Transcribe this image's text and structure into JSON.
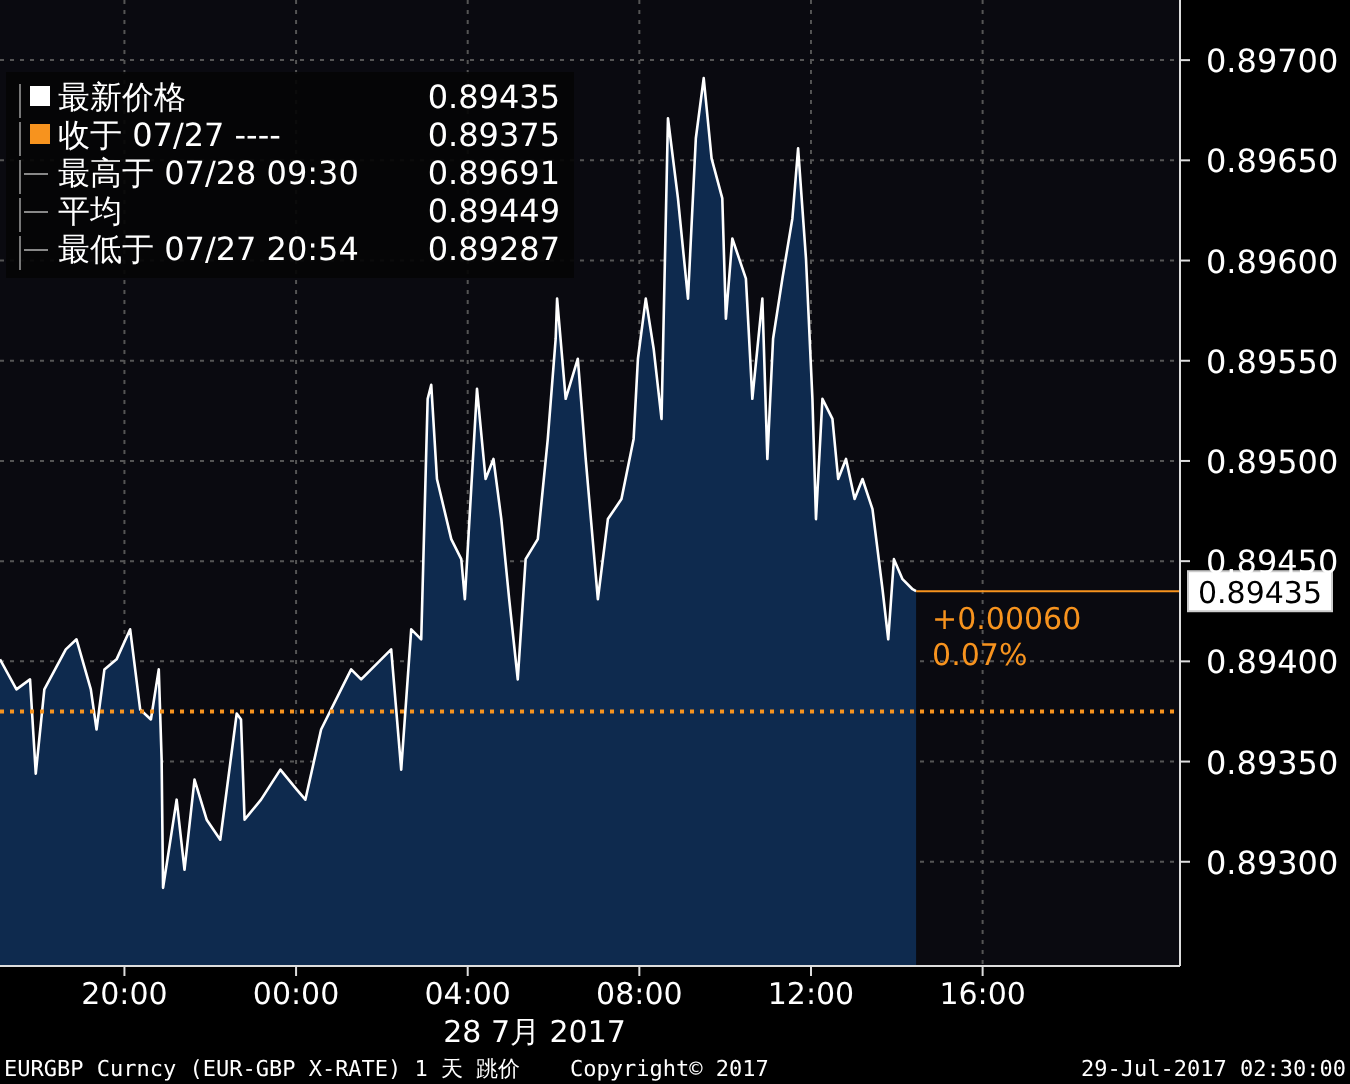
{
  "chart_data": {
    "type": "area",
    "xlabel": "28 7月 2017",
    "x": [
      "2017-07-27T17:06",
      "2017-07-27T17:29",
      "2017-07-27T17:48",
      "2017-07-27T17:56",
      "2017-07-27T18:08",
      "2017-07-27T18:38",
      "2017-07-27T18:53",
      "2017-07-27T19:13",
      "2017-07-27T19:21",
      "2017-07-27T19:32",
      "2017-07-27T19:49",
      "2017-07-27T20:08",
      "2017-07-27T20:22",
      "2017-07-27T20:37",
      "2017-07-27T20:48",
      "2017-07-27T20:52",
      "2017-07-27T20:54",
      "2017-07-27T21:13",
      "2017-07-27T21:24",
      "2017-07-27T21:38",
      "2017-07-27T21:55",
      "2017-07-27T22:14",
      "2017-07-27T22:37",
      "2017-07-27T22:43",
      "2017-07-27T22:48",
      "2017-07-27T23:11",
      "2017-07-27T23:38",
      "2017-07-28T00:01",
      "2017-07-28T00:13",
      "2017-07-28T00:35",
      "2017-07-28T01:03",
      "2017-07-28T01:17",
      "2017-07-28T01:31",
      "2017-07-28T01:59",
      "2017-07-28T02:13",
      "2017-07-28T02:27",
      "2017-07-28T02:41",
      "2017-07-28T02:55",
      "2017-07-28T03:04",
      "2017-07-28T03:09",
      "2017-07-28T03:17",
      "2017-07-28T03:37",
      "2017-07-28T03:51",
      "2017-07-28T03:56",
      "2017-07-28T04:13",
      "2017-07-28T04:25",
      "2017-07-28T04:36",
      "2017-07-28T04:47",
      "2017-07-28T04:58",
      "2017-07-28T05:10",
      "2017-07-28T05:21",
      "2017-07-28T05:38",
      "2017-07-28T05:52",
      "2017-07-28T06:03",
      "2017-07-28T06:05",
      "2017-07-28T06:17",
      "2017-07-28T06:34",
      "2017-07-28T06:45",
      "2017-07-28T07:02",
      "2017-07-28T07:16",
      "2017-07-28T07:35",
      "2017-07-28T07:52",
      "2017-07-28T07:58",
      "2017-07-28T08:09",
      "2017-07-28T08:20",
      "2017-07-28T08:31",
      "2017-07-28T08:40",
      "2017-07-28T08:54",
      "2017-07-28T09:08",
      "2017-07-28T09:19",
      "2017-07-28T09:30",
      "2017-07-28T09:41",
      "2017-07-28T09:56",
      "2017-07-28T10:01",
      "2017-07-28T10:10",
      "2017-07-28T10:29",
      "2017-07-28T10:38",
      "2017-07-28T10:52",
      "2017-07-28T10:59",
      "2017-07-28T11:07",
      "2017-07-28T11:20",
      "2017-07-28T11:34",
      "2017-07-28T11:42",
      "2017-07-28T11:53",
      "2017-07-28T12:02",
      "2017-07-28T12:07",
      "2017-07-28T12:16",
      "2017-07-28T12:30",
      "2017-07-28T12:38",
      "2017-07-28T12:49",
      "2017-07-28T13:01",
      "2017-07-28T13:12",
      "2017-07-28T13:26",
      "2017-07-28T13:40",
      "2017-07-28T13:48",
      "2017-07-28T13:56",
      "2017-07-28T14:08",
      "2017-07-28T14:22",
      "2017-07-28T14:27"
    ],
    "series": [
      {
        "color": "#ffffff",
        "values": [
          0.89401,
          0.89386,
          0.89391,
          0.89344,
          0.89386,
          0.89406,
          0.89411,
          0.89386,
          0.89366,
          0.89396,
          0.89401,
          0.89416,
          0.89376,
          0.89371,
          0.89396,
          0.89351,
          0.89287,
          0.89331,
          0.89296,
          0.89341,
          0.89321,
          0.89311,
          0.89374,
          0.89371,
          0.89321,
          0.89331,
          0.89346,
          0.89336,
          0.89331,
          0.89366,
          0.89386,
          0.89396,
          0.89391,
          0.89401,
          0.89406,
          0.89346,
          0.89416,
          0.89411,
          0.89531,
          0.89538,
          0.89491,
          0.89461,
          0.89451,
          0.89431,
          0.89536,
          0.89491,
          0.89501,
          0.89471,
          0.89431,
          0.89391,
          0.89451,
          0.89461,
          0.89511,
          0.89561,
          0.89581,
          0.89531,
          0.89551,
          0.89501,
          0.89431,
          0.89471,
          0.89481,
          0.89511,
          0.89551,
          0.89581,
          0.89556,
          0.89521,
          0.89671,
          0.89631,
          0.89581,
          0.89661,
          0.89691,
          0.89651,
          0.89631,
          0.89571,
          0.89611,
          0.89591,
          0.89531,
          0.89581,
          0.89501,
          0.89561,
          0.89591,
          0.89621,
          0.89656,
          0.89601,
          0.89531,
          0.89471,
          0.89531,
          0.89521,
          0.89491,
          0.89501,
          0.89481,
          0.89491,
          0.89476,
          0.89436,
          0.89411,
          0.89451,
          0.89441,
          0.89436,
          0.89435
        ]
      }
    ],
    "xlim": [
      "2017-07-27T17:06",
      "2017-07-28T20:36"
    ],
    "xticks": [
      {
        "value": "2017-07-27T20:00",
        "label": "20:00"
      },
      {
        "value": "2017-07-28T00:00",
        "label": "00:00"
      },
      {
        "value": "2017-07-28T04:00",
        "label": "04:00"
      },
      {
        "value": "2017-07-28T08:00",
        "label": "08:00"
      },
      {
        "value": "2017-07-28T12:00",
        "label": "12:00"
      },
      {
        "value": "2017-07-28T16:00",
        "label": "16:00"
      }
    ],
    "ylim": [
      0.89248,
      0.8973
    ],
    "yticks": [
      {
        "value": 0.893,
        "label": "0.89300"
      },
      {
        "value": 0.8935,
        "label": "0.89350"
      },
      {
        "value": 0.894,
        "label": "0.89400"
      },
      {
        "value": 0.8945,
        "label": "0.89450"
      },
      {
        "value": 0.895,
        "label": "0.89500"
      },
      {
        "value": 0.8955,
        "label": "0.89550"
      },
      {
        "value": 0.896,
        "label": "0.89600"
      },
      {
        "value": 0.8965,
        "label": "0.89650"
      },
      {
        "value": 0.897,
        "label": "0.89700"
      }
    ],
    "grid": true,
    "ref_lines": [
      {
        "axis": "y",
        "value": 0.89375,
        "color": "#f7931e",
        "line_style": "dotted"
      },
      {
        "axis": "y",
        "value": 0.89435,
        "label": "0.89435",
        "color": "#f7931e",
        "line_style": "solid"
      }
    ],
    "annotations": [
      "最新价格 0.89435",
      "收于 07/27 ---- 0.89375",
      "最高于 07/28 09:30 0.89691",
      "平均 0.89449",
      "最低于 07/27 20:54 0.89287",
      {
        "text": "+0.00060",
        "x": "2017-07-28T14:27",
        "y": 0.89435
      },
      {
        "text": "0.07%",
        "x": "2017-07-28T14:27",
        "y": 0.89435
      },
      "EURGBP Curncy (EUR-GBP X-RATE) 1 天  跳价",
      "Copyright© 2017",
      "29-Jul-2017 02:30:00"
    ]
  }
}
